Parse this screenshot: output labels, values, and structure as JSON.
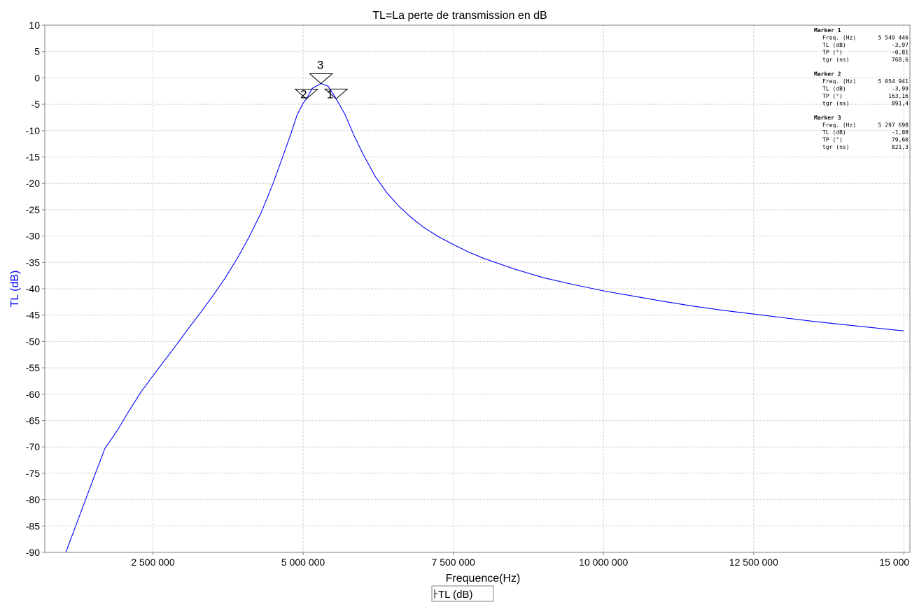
{
  "chart_data": {
    "type": "line",
    "title": "TL=La perte de transmission en dB",
    "xlabel": "Frequence(Hz)",
    "ylabel": "TL (dB)",
    "xlim": [
      700000,
      15100000
    ],
    "ylim": [
      -90,
      10
    ],
    "x_ticks": [
      2500000,
      5000000,
      7500000,
      10000000,
      12500000,
      15000000
    ],
    "x_tick_labels": [
      "2 500 000",
      "5 000 000",
      "7 500 000",
      "10 000 000",
      "12 500 000",
      "15 000 000"
    ],
    "y_ticks": [
      10,
      5,
      0,
      -5,
      -10,
      -15,
      -20,
      -25,
      -30,
      -35,
      -40,
      -45,
      -50,
      -55,
      -60,
      -65,
      -70,
      -75,
      -80,
      -85,
      -90
    ],
    "y_tick_labels": [
      "10",
      "5",
      "0",
      "-5",
      "-10",
      "-15",
      "-20",
      "-25",
      "-30",
      "-35",
      "-40",
      "-45",
      "-50",
      "-55",
      "-60",
      "-65",
      "-70",
      "-75",
      "-80",
      "-85",
      "-90"
    ],
    "grid": true,
    "legend": "bottom-center",
    "series": [
      {
        "name": "TL (dB)",
        "color": "#0000ff",
        "x": [
          1050000,
          1300000,
          1500000,
          1700000,
          1900000,
          2100000,
          2300000,
          2500000,
          2700000,
          2900000,
          3100000,
          3300000,
          3500000,
          3700000,
          3900000,
          4100000,
          4300000,
          4500000,
          4650000,
          4800000,
          4900000,
          5000000,
          5054941,
          5150000,
          5297698,
          5420000,
          5549446,
          5700000,
          5850000,
          6000000,
          6200000,
          6400000,
          6600000,
          6800000,
          7000000,
          7250000,
          7500000,
          7750000,
          8000000,
          8500000,
          9000000,
          9500000,
          10000000,
          10500000,
          11000000,
          11500000,
          12000000,
          12500000,
          13000000,
          13500000,
          14000000,
          14500000,
          15000000
        ],
        "y": [
          -90,
          -82.4,
          -76.3,
          -70.3,
          -67,
          -63.2,
          -59.6,
          -56.5,
          -53.5,
          -50.5,
          -47.4,
          -44.4,
          -41.3,
          -38,
          -34.3,
          -30.2,
          -25.6,
          -20,
          -15.3,
          -10.5,
          -7,
          -4.8,
          -3.99,
          -2,
          -1.08,
          -1.6,
          -3.97,
          -7,
          -11,
          -14.5,
          -18.7,
          -21.9,
          -24.4,
          -26.5,
          -28.3,
          -30.1,
          -31.6,
          -33,
          -34.2,
          -36.2,
          -37.9,
          -39.2,
          -40.4,
          -41.4,
          -42.4,
          -43.3,
          -44.1,
          -44.8,
          -45.5,
          -46.2,
          -46.8,
          -47.4,
          -48
        ]
      }
    ],
    "markers": [
      {
        "label": "1",
        "x": 5549446,
        "y": -3.97
      },
      {
        "label": "2",
        "x": 5054941,
        "y": -3.99
      },
      {
        "label": "3",
        "x": 5297698,
        "y": -1.08
      }
    ]
  },
  "marker_panel": [
    {
      "title": "Marker 1",
      "rows": [
        {
          "label": "Freq. (Hz)",
          "value": "5 549 446"
        },
        {
          "label": "TL (dB)",
          "value": "-3,97"
        },
        {
          "label": "TP (°)",
          "value": "-0,81"
        },
        {
          "label": "tgr (ns)",
          "value": "768,6"
        }
      ]
    },
    {
      "title": "Marker 2",
      "rows": [
        {
          "label": "Freq. (Hz)",
          "value": "5 054 941"
        },
        {
          "label": "TL (dB)",
          "value": "-3,99"
        },
        {
          "label": "TP (°)",
          "value": "163,16"
        },
        {
          "label": "tgr (ns)",
          "value": "891,4"
        }
      ]
    },
    {
      "title": "Marker 3",
      "rows": [
        {
          "label": "Freq. (Hz)",
          "value": "5 297 698"
        },
        {
          "label": "TL (dB)",
          "value": "-1,08"
        },
        {
          "label": "TP (°)",
          "value": "79,60"
        },
        {
          "label": "tgr (ns)",
          "value": "821,3"
        }
      ]
    }
  ],
  "legend_label": "TL (dB)",
  "colors": {
    "series": "#0000ff",
    "grid": "#c8c8c8",
    "axis": "#808080",
    "ylabel": "#0000ff"
  }
}
